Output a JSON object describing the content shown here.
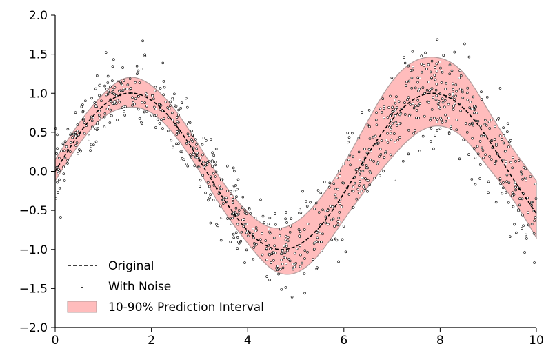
{
  "chart_data": {
    "type": "line",
    "title": "",
    "xlabel": "",
    "ylabel": "",
    "xlim": [
      0,
      10
    ],
    "ylim": [
      -2.0,
      2.0
    ],
    "x_ticks": [
      0,
      2,
      4,
      6,
      8,
      10
    ],
    "x_tick_labels": [
      "0",
      "2",
      "4",
      "6",
      "8",
      "10"
    ],
    "y_ticks": [
      -2.0,
      -1.5,
      -1.0,
      -0.5,
      0.0,
      0.5,
      1.0,
      1.5,
      2.0
    ],
    "y_tick_labels": [
      "−2.0",
      "−1.5",
      "−1.0",
      "−0.5",
      "0.0",
      "0.5",
      "1.0",
      "1.5",
      "2.0"
    ],
    "grid": false,
    "legend_position": "lower-left",
    "x": [
      0,
      0.5,
      1.0,
      1.5,
      2.0,
      2.5,
      3.0,
      3.5,
      4.0,
      4.5,
      5.0,
      5.5,
      6.0,
      6.5,
      7.0,
      7.5,
      8.0,
      8.5,
      9.0,
      9.5,
      10.0
    ],
    "series": [
      {
        "name": "Original",
        "kind": "line",
        "style": "dashed",
        "color": "#000000",
        "y": [
          0.0,
          0.48,
          0.84,
          1.0,
          0.91,
          0.6,
          0.14,
          -0.35,
          -0.76,
          -0.98,
          -0.96,
          -0.71,
          -0.28,
          0.22,
          0.66,
          0.94,
          0.99,
          0.8,
          0.41,
          -0.08,
          -0.54
        ]
      },
      {
        "name": "With Noise",
        "kind": "scatter",
        "marker": "small open circle",
        "color": "#000000",
        "noise_scale": 0.2,
        "point_count": 1000
      },
      {
        "name": "10-90% Prediction Interval",
        "kind": "band",
        "fill_color": "#ffbcbc",
        "edge_color": "#b09a9a",
        "lower": [
          -0.12,
          0.35,
          0.69,
          0.82,
          0.75,
          0.45,
          0.0,
          -0.5,
          -0.92,
          -1.25,
          -1.3,
          -1.05,
          -0.62,
          -0.2,
          0.18,
          0.48,
          0.58,
          0.42,
          0.05,
          -0.35,
          -0.85
        ],
        "upper": [
          0.15,
          0.62,
          0.99,
          1.2,
          1.1,
          0.78,
          0.32,
          -0.15,
          -0.52,
          -0.72,
          -0.65,
          -0.35,
          0.1,
          0.65,
          1.15,
          1.42,
          1.45,
          1.25,
          0.78,
          0.3,
          -0.12
        ]
      }
    ],
    "colors": {
      "band_fill": "#ffbcbc",
      "band_edge": "#b09a9a",
      "line": "#000000",
      "axis": "#000000"
    }
  }
}
